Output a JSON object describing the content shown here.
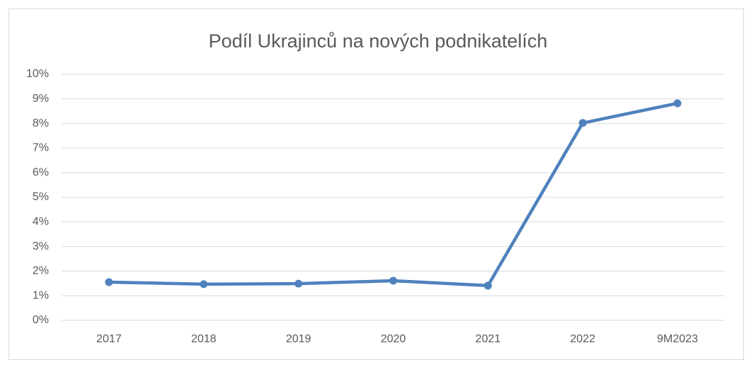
{
  "chart_data": {
    "type": "line",
    "title": "Podíl Ukrajinců na nových podnikatelích",
    "categories": [
      "2017",
      "2018",
      "2019",
      "2020",
      "2021",
      "2022",
      "9M2023"
    ],
    "series": [
      {
        "color": "#4f81bd",
        "values": [
          1.55,
          1.47,
          1.49,
          1.61,
          1.41,
          8.02,
          8.82
        ]
      }
    ],
    "ylim": [
      0,
      10
    ],
    "yticks": [
      {
        "value": 0,
        "label": "0%"
      },
      {
        "value": 1,
        "label": "1%"
      },
      {
        "value": 2,
        "label": "2%"
      },
      {
        "value": 3,
        "label": "3%"
      },
      {
        "value": 4,
        "label": "4%"
      },
      {
        "value": 5,
        "label": "5%"
      },
      {
        "value": 6,
        "label": "6%"
      },
      {
        "value": 7,
        "label": "7%"
      },
      {
        "value": 8,
        "label": "8%"
      },
      {
        "value": 9,
        "label": "9%"
      },
      {
        "value": 10,
        "label": "10%"
      }
    ],
    "grid": true
  }
}
